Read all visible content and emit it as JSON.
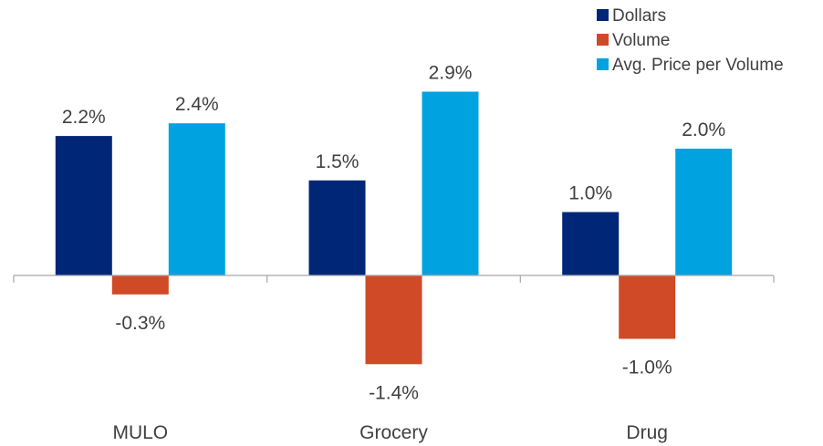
{
  "chart_data": {
    "type": "bar",
    "title": "",
    "xlabel": "",
    "ylabel": "",
    "categories": [
      "MULO",
      "Grocery",
      "Drug"
    ],
    "series": [
      {
        "name": "Dollars",
        "color": "#002677",
        "values": [
          2.2,
          1.5,
          1.0
        ],
        "labels": [
          "2.2%",
          "1.5%",
          "1.0%"
        ]
      },
      {
        "name": "Volume",
        "color": "#D04A27",
        "values": [
          -0.3,
          -1.4,
          -1.0
        ],
        "labels": [
          "-0.3%",
          "-1.4%",
          "-1.0%"
        ]
      },
      {
        "name": "Avg. Price per Volume",
        "color": "#00A3E0",
        "values": [
          2.4,
          2.9,
          2.0
        ],
        "labels": [
          "2.4%",
          "2.9%",
          "2.0%"
        ]
      }
    ],
    "ylim": [
      -2.0,
      3.0
    ],
    "grid": false,
    "legend_position": "top-right",
    "axis_color": "#A6A6A6"
  }
}
